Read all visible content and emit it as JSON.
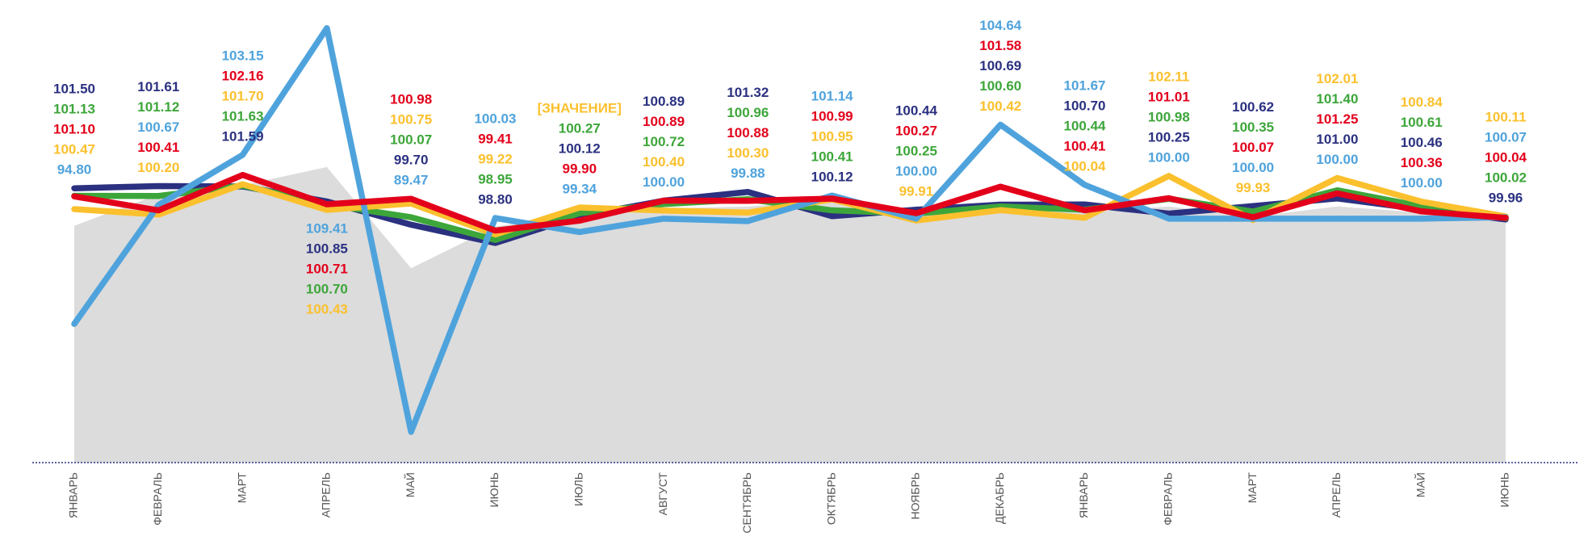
{
  "chart_data": {
    "type": "line",
    "categories": [
      "ЯНВАРЬ",
      "ФЕВРАЛЬ",
      "МАРТ",
      "АПРЕЛЬ",
      "МАЙ",
      "ИЮНЬ",
      "ИЮЛЬ",
      "АВГУСТ",
      "СЕНТЯБРЬ",
      "ОКТЯБРЬ",
      "НОЯБРЬ",
      "ДЕКАБРЬ",
      "ЯНВАРЬ",
      "ФЕВРАЛЬ",
      "МАРТ",
      "АПРЕЛЬ",
      "МАЙ",
      "ИЮНЬ"
    ],
    "ylim": [
      87.95,
      110.8
    ],
    "area": {
      "color": "#dcdcdc",
      "values": [
        99.65,
        101.2,
        101.65,
        102.55,
        97.55,
        99.6,
        100.3,
        100.5,
        100.6,
        100.9,
        100.1,
        100.5,
        100.3,
        100.6,
        100.1,
        100.6,
        100.3,
        100.0
      ]
    },
    "series": [
      {
        "color": "#2b3180",
        "values": [
          101.5,
          101.61,
          101.59,
          100.85,
          99.7,
          98.8,
          100.12,
          100.89,
          101.32,
          100.12,
          100.44,
          100.69,
          100.7,
          100.25,
          100.62,
          101.0,
          100.46,
          99.96
        ],
        "value_labels": [
          "101.50",
          "101.61",
          "101.59",
          "100.85",
          "99.70",
          "98.80",
          "100.12",
          "100.89",
          "101.32",
          "100.12",
          "100.44",
          "100.69",
          "100.70",
          "100.25",
          "100.62",
          "101.00",
          "100.46",
          "99.96"
        ]
      },
      {
        "color": "#3da63a",
        "values": [
          101.13,
          101.12,
          101.63,
          100.7,
          100.07,
          98.95,
          100.27,
          100.72,
          100.96,
          100.41,
          100.25,
          100.6,
          100.44,
          100.98,
          100.35,
          101.4,
          100.61,
          100.02
        ],
        "value_labels": [
          "101.13",
          "101.12",
          "101.63",
          "100.70",
          "100.07",
          "98.95",
          "100.27",
          "100.72",
          "100.96",
          "100.41",
          "100.25",
          "100.60",
          "100.44",
          "100.98",
          "100.35",
          "101.40",
          "100.61",
          "100.02"
        ]
      },
      {
        "color": "#fbc02d",
        "values": [
          100.47,
          100.2,
          101.7,
          100.43,
          100.75,
          99.22,
          100.55,
          100.4,
          100.3,
          100.95,
          99.91,
          100.42,
          100.04,
          102.11,
          99.93,
          102.01,
          100.84,
          100.11
        ],
        "value_labels": [
          "100.47",
          "100.20",
          "101.70",
          "100.43",
          "100.75",
          "99.22",
          "[ЗНАЧЕНИЕ]",
          "100.40",
          "100.30",
          "100.95",
          "99.91",
          "100.42",
          "100.04",
          "102.11",
          "99.93",
          "102.01",
          "100.84",
          "100.11"
        ]
      },
      {
        "color": "#4fa3dc",
        "values": [
          94.8,
          100.67,
          103.15,
          109.41,
          89.47,
          100.03,
          99.34,
          100.0,
          99.88,
          101.14,
          100.0,
          104.64,
          101.67,
          100.0,
          100.0,
          100.0,
          100.0,
          100.07
        ],
        "value_labels": [
          "94.80",
          "100.67",
          "103.15",
          "109.41",
          "89.47",
          "100.03",
          "99.34",
          "100.00",
          "99.88",
          "101.14",
          "100.00",
          "104.64",
          "101.67",
          "100.00",
          "100.00",
          "100.00",
          "100.00",
          "100.07"
        ]
      },
      {
        "color": "#e3001b",
        "values": [
          101.1,
          100.41,
          102.16,
          100.71,
          100.98,
          99.41,
          99.9,
          100.89,
          100.88,
          100.99,
          100.27,
          101.58,
          100.41,
          101.01,
          100.07,
          101.25,
          100.36,
          100.04
        ],
        "value_labels": [
          "101.10",
          "100.41",
          "102.16",
          "100.71",
          "100.98",
          "99.41",
          "99.90",
          "100.89",
          "100.88",
          "100.99",
          "100.27",
          "101.58",
          "100.41",
          "101.01",
          "100.07",
          "101.25",
          "100.36",
          "100.04"
        ]
      }
    ]
  }
}
